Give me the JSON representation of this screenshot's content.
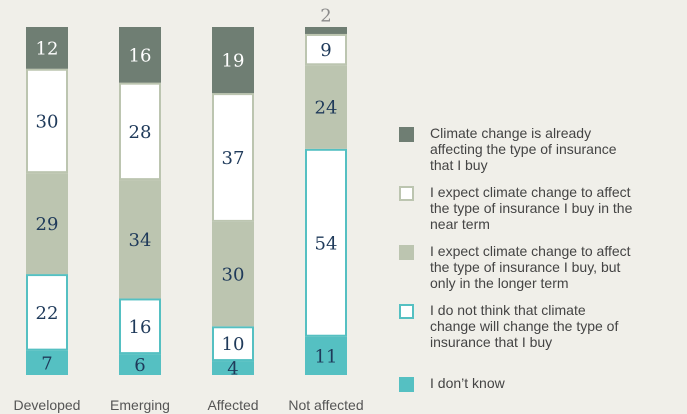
{
  "chart_data": {
    "type": "bar",
    "stacked": true,
    "categories": [
      "Developed",
      "Emerging",
      "Affected",
      "Not affected"
    ],
    "ylim": [
      0,
      100
    ],
    "series": [
      {
        "name": "Climate change is already affecting the type of insurance that I buy",
        "color": "#6f7e73",
        "fill": "#6f7e73",
        "label_color": "#ffffff",
        "values": [
          12,
          16,
          19,
          2
        ]
      },
      {
        "name": "I expect climate change to affect the type of insurance I buy in the near term",
        "color": "#bcc5b0",
        "fill": "#ffffff",
        "label_color": "#1f3a5a",
        "values": [
          30,
          28,
          37,
          9
        ]
      },
      {
        "name": "I expect climate change to affect the type of insurance I buy, but only in the longer term",
        "color": "#bcc5b0",
        "fill": "#bcc5b0",
        "label_color": "#1f3a5a",
        "values": [
          29,
          34,
          30,
          24
        ]
      },
      {
        "name": "I do not think that climate change will change the type of insurance that I buy",
        "color": "#55c0c2",
        "fill": "#ffffff",
        "label_color": "#1f3a5a",
        "values": [
          22,
          16,
          10,
          54
        ]
      },
      {
        "name": "I don’t know",
        "color": "#55c0c2",
        "fill": "#55c0c2",
        "label_color": "#1f3a5a",
        "values": [
          7,
          6,
          4,
          11
        ]
      }
    ]
  }
}
